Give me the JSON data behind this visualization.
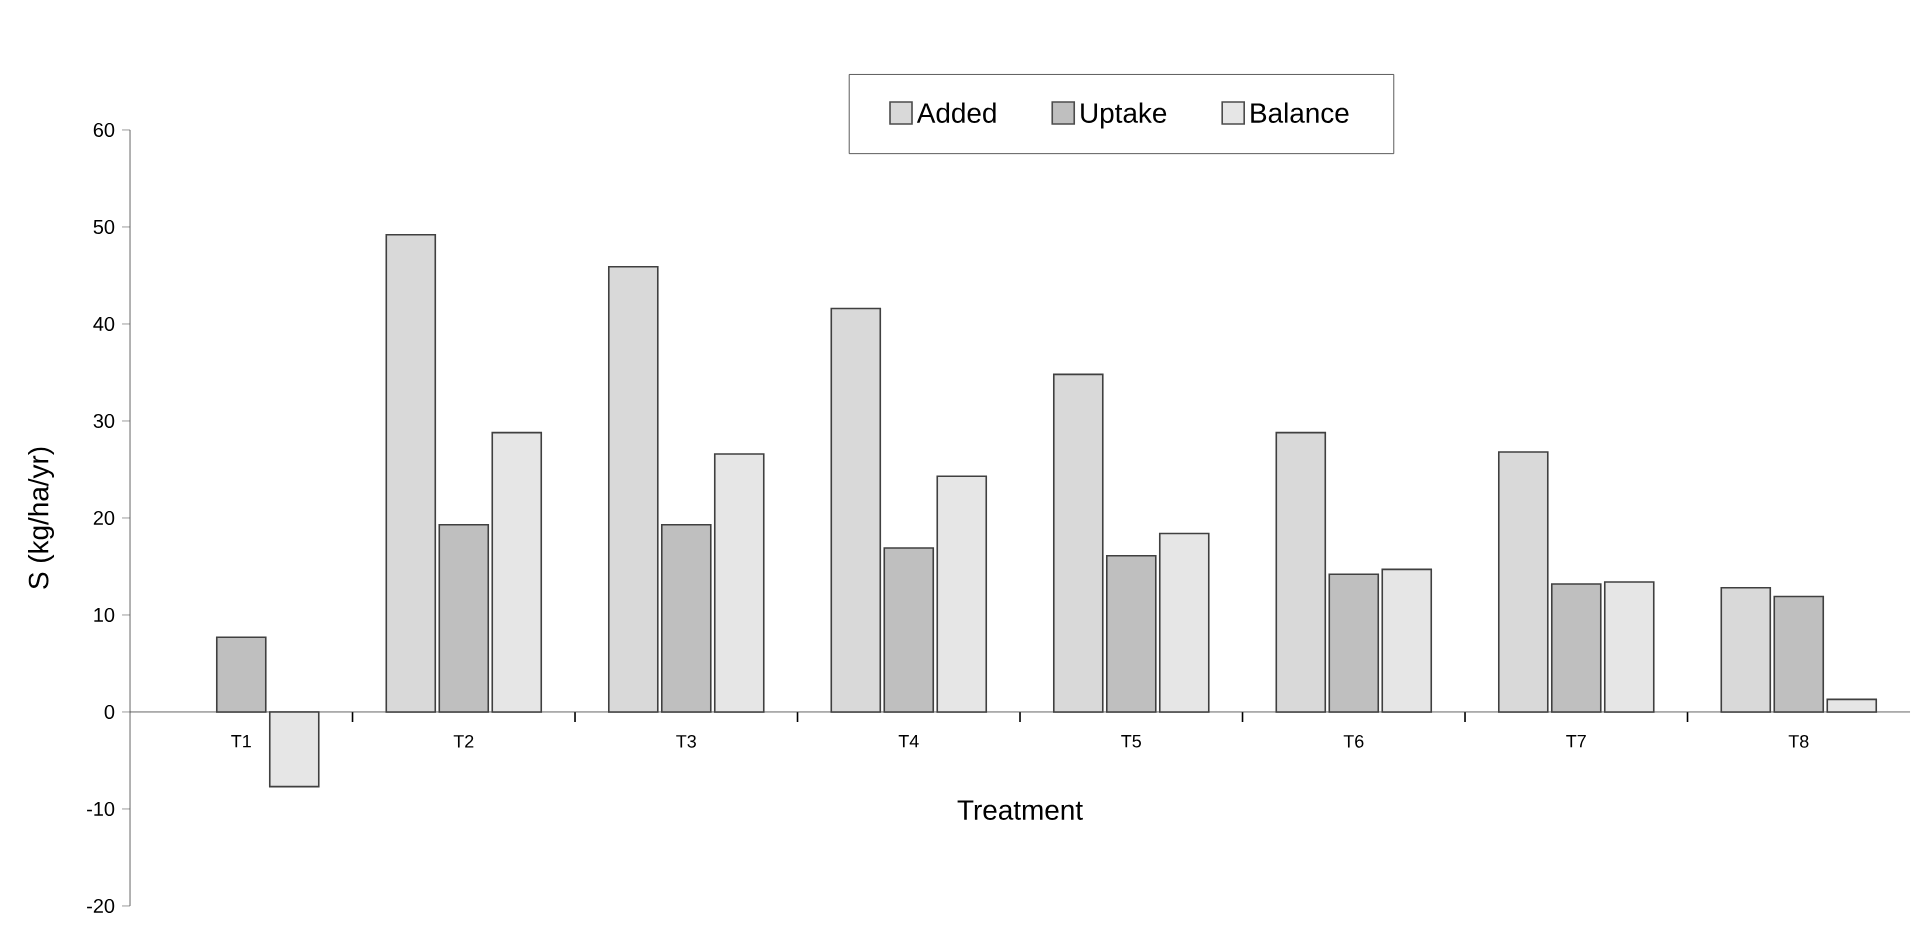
{
  "chart_data": {
    "type": "bar",
    "xlabel": "Treatment",
    "ylabel": "S (kg/ha/yr)",
    "categories": [
      "T1",
      "T2",
      "T3",
      "T4",
      "T5",
      "T6",
      "T7",
      "T8"
    ],
    "series": [
      {
        "name": "Added",
        "color": "#d9d9d9",
        "values": [
          null,
          49.2,
          45.9,
          41.6,
          34.8,
          28.8,
          26.8,
          12.8
        ]
      },
      {
        "name": "Uptake",
        "color": "#bfbfbf",
        "values": [
          7.7,
          19.3,
          19.3,
          16.9,
          16.1,
          14.2,
          13.2,
          11.9
        ]
      },
      {
        "name": "Balance",
        "color": "#e6e6e6",
        "values": [
          -7.7,
          28.8,
          26.6,
          24.3,
          18.4,
          14.7,
          13.4,
          1.3
        ]
      }
    ],
    "ylim": [
      -20,
      60
    ],
    "yticks": [
      -20,
      -10,
      0,
      10,
      20,
      30,
      40,
      50,
      60
    ],
    "grid": false,
    "legend": "top"
  }
}
